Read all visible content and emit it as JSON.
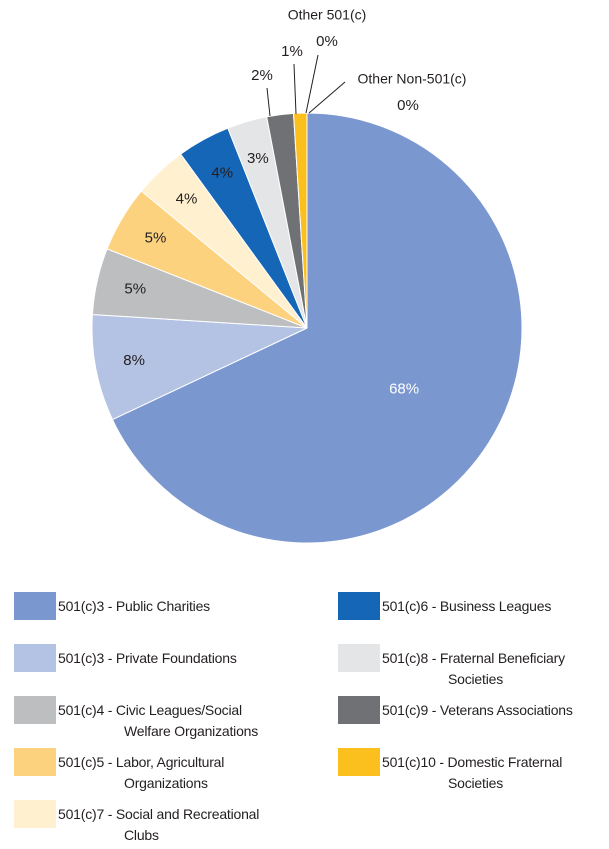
{
  "chart_data": {
    "type": "pie",
    "series": [
      {
        "name": "501(c)3 - Public Charities",
        "color": "#7b97cf",
        "values": [
          68
        ],
        "value_labels": [
          "68%"
        ]
      },
      {
        "name": "501(c)3 - Private Foundations",
        "color": "#b4c3e3",
        "values": [
          8
        ],
        "value_labels": [
          "8%"
        ]
      },
      {
        "name": "501(c)4 - Civic Leagues/Social Welfare Organizations",
        "color": "#bdbec0",
        "values": [
          5
        ],
        "value_labels": [
          "5%"
        ]
      },
      {
        "name": "501(c)5 - Labor, Agricultural Organizations",
        "color": "#fdd27f",
        "values": [
          5
        ],
        "value_labels": [
          "5%"
        ]
      },
      {
        "name": "501(c)7 - Social and Recreational Clubs",
        "color": "#fff0d0",
        "values": [
          4
        ],
        "value_labels": [
          "4%"
        ]
      },
      {
        "name": "501(c)6 - Business Leagues",
        "color": "#1566b7",
        "values": [
          4
        ],
        "value_labels": [
          "4%"
        ]
      },
      {
        "name": "501(c)8 - Fraternal Beneficiary Societies",
        "color": "#e4e5e7",
        "values": [
          3
        ],
        "value_labels": [
          "3%"
        ]
      },
      {
        "name": "501(c)9 - Veterans Associations",
        "color": "#707174",
        "values": [
          2
        ],
        "value_labels": [
          "2%"
        ]
      },
      {
        "name": "501(c)10 - Domestic Fraternal Societies",
        "color": "#fbbf1e",
        "values": [
          1
        ],
        "value_labels": [
          "1%"
        ]
      },
      {
        "name": "Other 501(c)",
        "color": "#d9d9d9",
        "values": [
          0
        ],
        "value_labels": [
          "0%"
        ]
      },
      {
        "name": "Other Non-501(c)",
        "color": "#a6a6a6",
        "values": [
          0
        ],
        "value_labels": [
          "0%"
        ]
      }
    ]
  }
}
